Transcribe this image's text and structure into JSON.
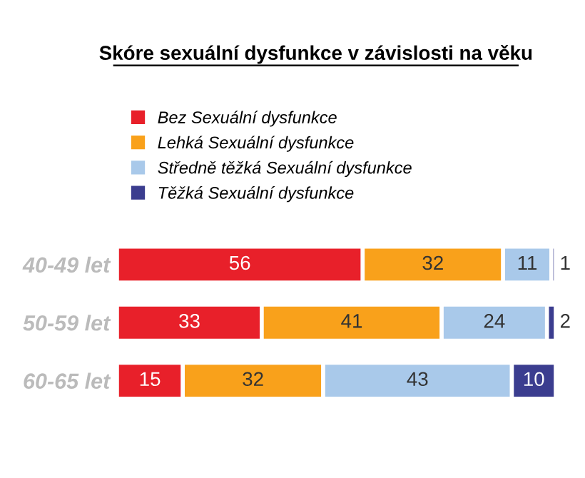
{
  "chart_data": {
    "type": "bar",
    "orientation": "horizontal",
    "stacked": true,
    "title": "Skóre sexuální dysfunkce v závislosti na věku",
    "categories": [
      "40-49 let",
      "50-59 let",
      "60-65 let"
    ],
    "series": [
      {
        "name": "Bez Sexuální dysfunkce",
        "color": "#e8202a",
        "values": [
          56,
          33,
          15
        ]
      },
      {
        "name": "Lehká Sexuální dysfunkce",
        "color": "#f9a11b",
        "values": [
          32,
          41,
          32
        ]
      },
      {
        "name": "Středně těžká Sexuální dysfunkce",
        "color": "#a9c9ea",
        "values": [
          11,
          24,
          43
        ]
      },
      {
        "name": "Těžká Sexuální dysfunkce",
        "color": "#3b3d8f",
        "values": [
          1,
          2,
          10
        ]
      }
    ],
    "data_labels": true,
    "legend": "top",
    "tick_labels": "y",
    "grid": false
  }
}
